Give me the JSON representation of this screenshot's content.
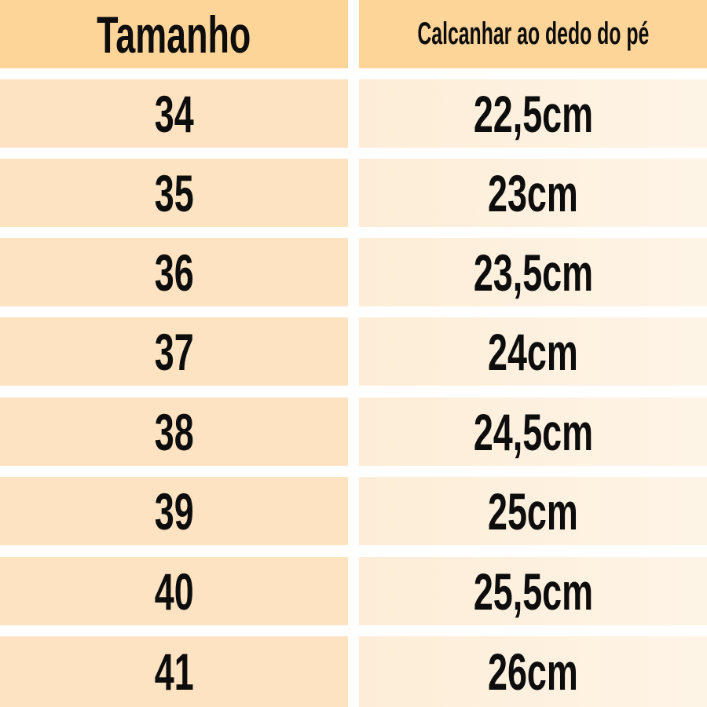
{
  "table": {
    "headers": [
      "Tamanho",
      "Calcanhar ao dedo do pé"
    ],
    "rows": [
      [
        "34",
        "22,5cm"
      ],
      [
        "35",
        "23cm"
      ],
      [
        "36",
        "23,5cm"
      ],
      [
        "37",
        "24cm"
      ],
      [
        "38",
        "24,5cm"
      ],
      [
        "39",
        "25cm"
      ],
      [
        "40",
        "25,5cm"
      ],
      [
        "41",
        "26cm"
      ]
    ]
  },
  "colors": {
    "header_bg": "#fdd598",
    "size_cell_bg": "#fde3c1",
    "length_cell_bg": "#fdf0dc",
    "text": "#0d0d0d"
  }
}
